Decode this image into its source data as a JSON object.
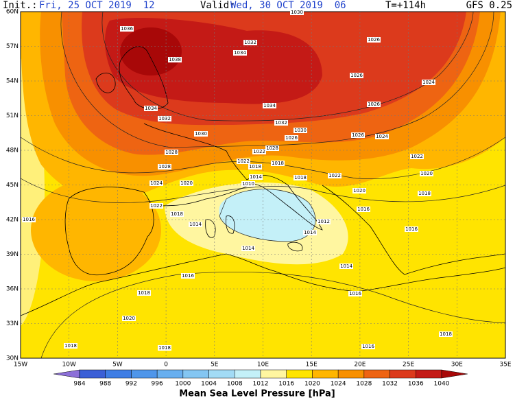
{
  "header": {
    "init_label": "Init.:",
    "init": "Fri, 25 OCT 2019  12",
    "valid_label": "Valid:",
    "valid": "Wed, 30 OCT 2019  06",
    "lead": "T=+114h",
    "model": "GFS 0.25"
  },
  "map": {
    "lat_ticks": [
      {
        "value": 60,
        "label": "60N"
      },
      {
        "value": 57,
        "label": "57N"
      },
      {
        "value": 54,
        "label": "54N"
      },
      {
        "value": 51,
        "label": "51N"
      },
      {
        "value": 48,
        "label": "48N"
      },
      {
        "value": 45,
        "label": "45N"
      },
      {
        "value": 42,
        "label": "42N"
      },
      {
        "value": 39,
        "label": "39N"
      },
      {
        "value": 36,
        "label": "36N"
      },
      {
        "value": 33,
        "label": "33N"
      },
      {
        "value": 30,
        "label": "30N"
      }
    ],
    "lon_ticks": [
      {
        "value": -15,
        "label": "15W"
      },
      {
        "value": -10,
        "label": "10W"
      },
      {
        "value": -5,
        "label": "5W"
      },
      0,
      {
        "value": 5,
        "label": "5E"
      },
      {
        "value": 10,
        "label": "10E"
      },
      {
        "value": 15,
        "label": "15E"
      },
      {
        "value": 20,
        "label": "20E"
      },
      {
        "value": 25,
        "label": "25E"
      },
      {
        "value": 30,
        "label": "30E"
      },
      {
        "value": 35,
        "label": "35E"
      }
    ],
    "isobar_labels": [
      1036,
      1030,
      1032,
      1034,
      1026,
      1038,
      1026,
      1024,
      1034,
      1034,
      1026,
      1032,
      1032,
      1030,
      1030,
      1026,
      1026,
      1024,
      1028,
      1022,
      1028,
      1022,
      1022,
      1018,
      1028,
      1018,
      1018,
      1022,
      1014,
      1024,
      1020,
      1010,
      1020,
      1020,
      1018,
      1022,
      1018,
      1016,
      1016,
      1014,
      1012,
      1016,
      1014,
      1014,
      1014,
      1016,
      1018,
      1016,
      1020,
      1018,
      1018,
      1018,
      1016
    ]
  },
  "colorbar": {
    "title": "Mean Sea Level Pressure [hPa]",
    "levels": [
      984,
      988,
      992,
      996,
      1000,
      1004,
      1008,
      1012,
      1016,
      1020,
      1024,
      1028,
      1032,
      1036,
      1040
    ],
    "colors": [
      "#8c6fd8",
      "#3b5fd6",
      "#3f7de4",
      "#4f96ea",
      "#68afef",
      "#84c6f2",
      "#a2dbf5",
      "#c4f0f8",
      "#fff6a0",
      "#ffe400",
      "#ffb600",
      "#f89000",
      "#ee6412",
      "#dc3a1c",
      "#c41a16",
      "#a80808"
    ]
  }
}
